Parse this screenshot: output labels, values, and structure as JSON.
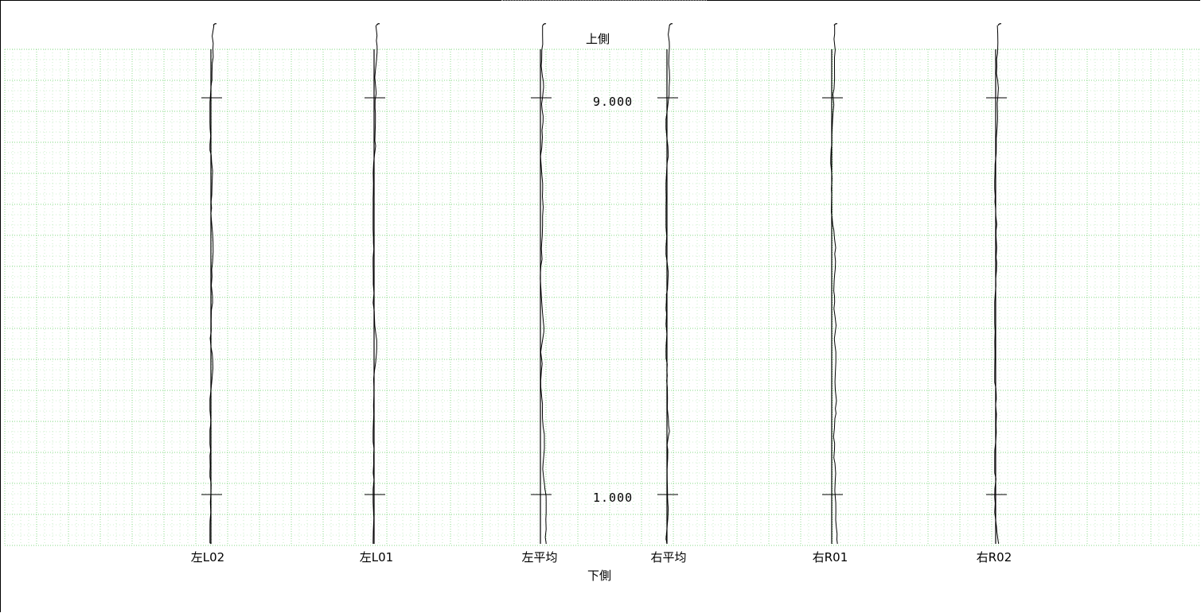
{
  "labels": {
    "top": "上側",
    "bottom": "下側",
    "tick_upper": "9.000",
    "tick_lower": "1.000"
  },
  "rails": [
    {
      "id": "l02",
      "label": "左L02"
    },
    {
      "id": "l01",
      "label": "左L01"
    },
    {
      "id": "lavg",
      "label": "左平均"
    },
    {
      "id": "ravg",
      "label": "右平均"
    },
    {
      "id": "r01",
      "label": "右R01"
    },
    {
      "id": "r02",
      "label": "右R02"
    }
  ],
  "colors": {
    "grid": "#7fd87f",
    "line": "#000000",
    "background": "#ffffff"
  }
}
